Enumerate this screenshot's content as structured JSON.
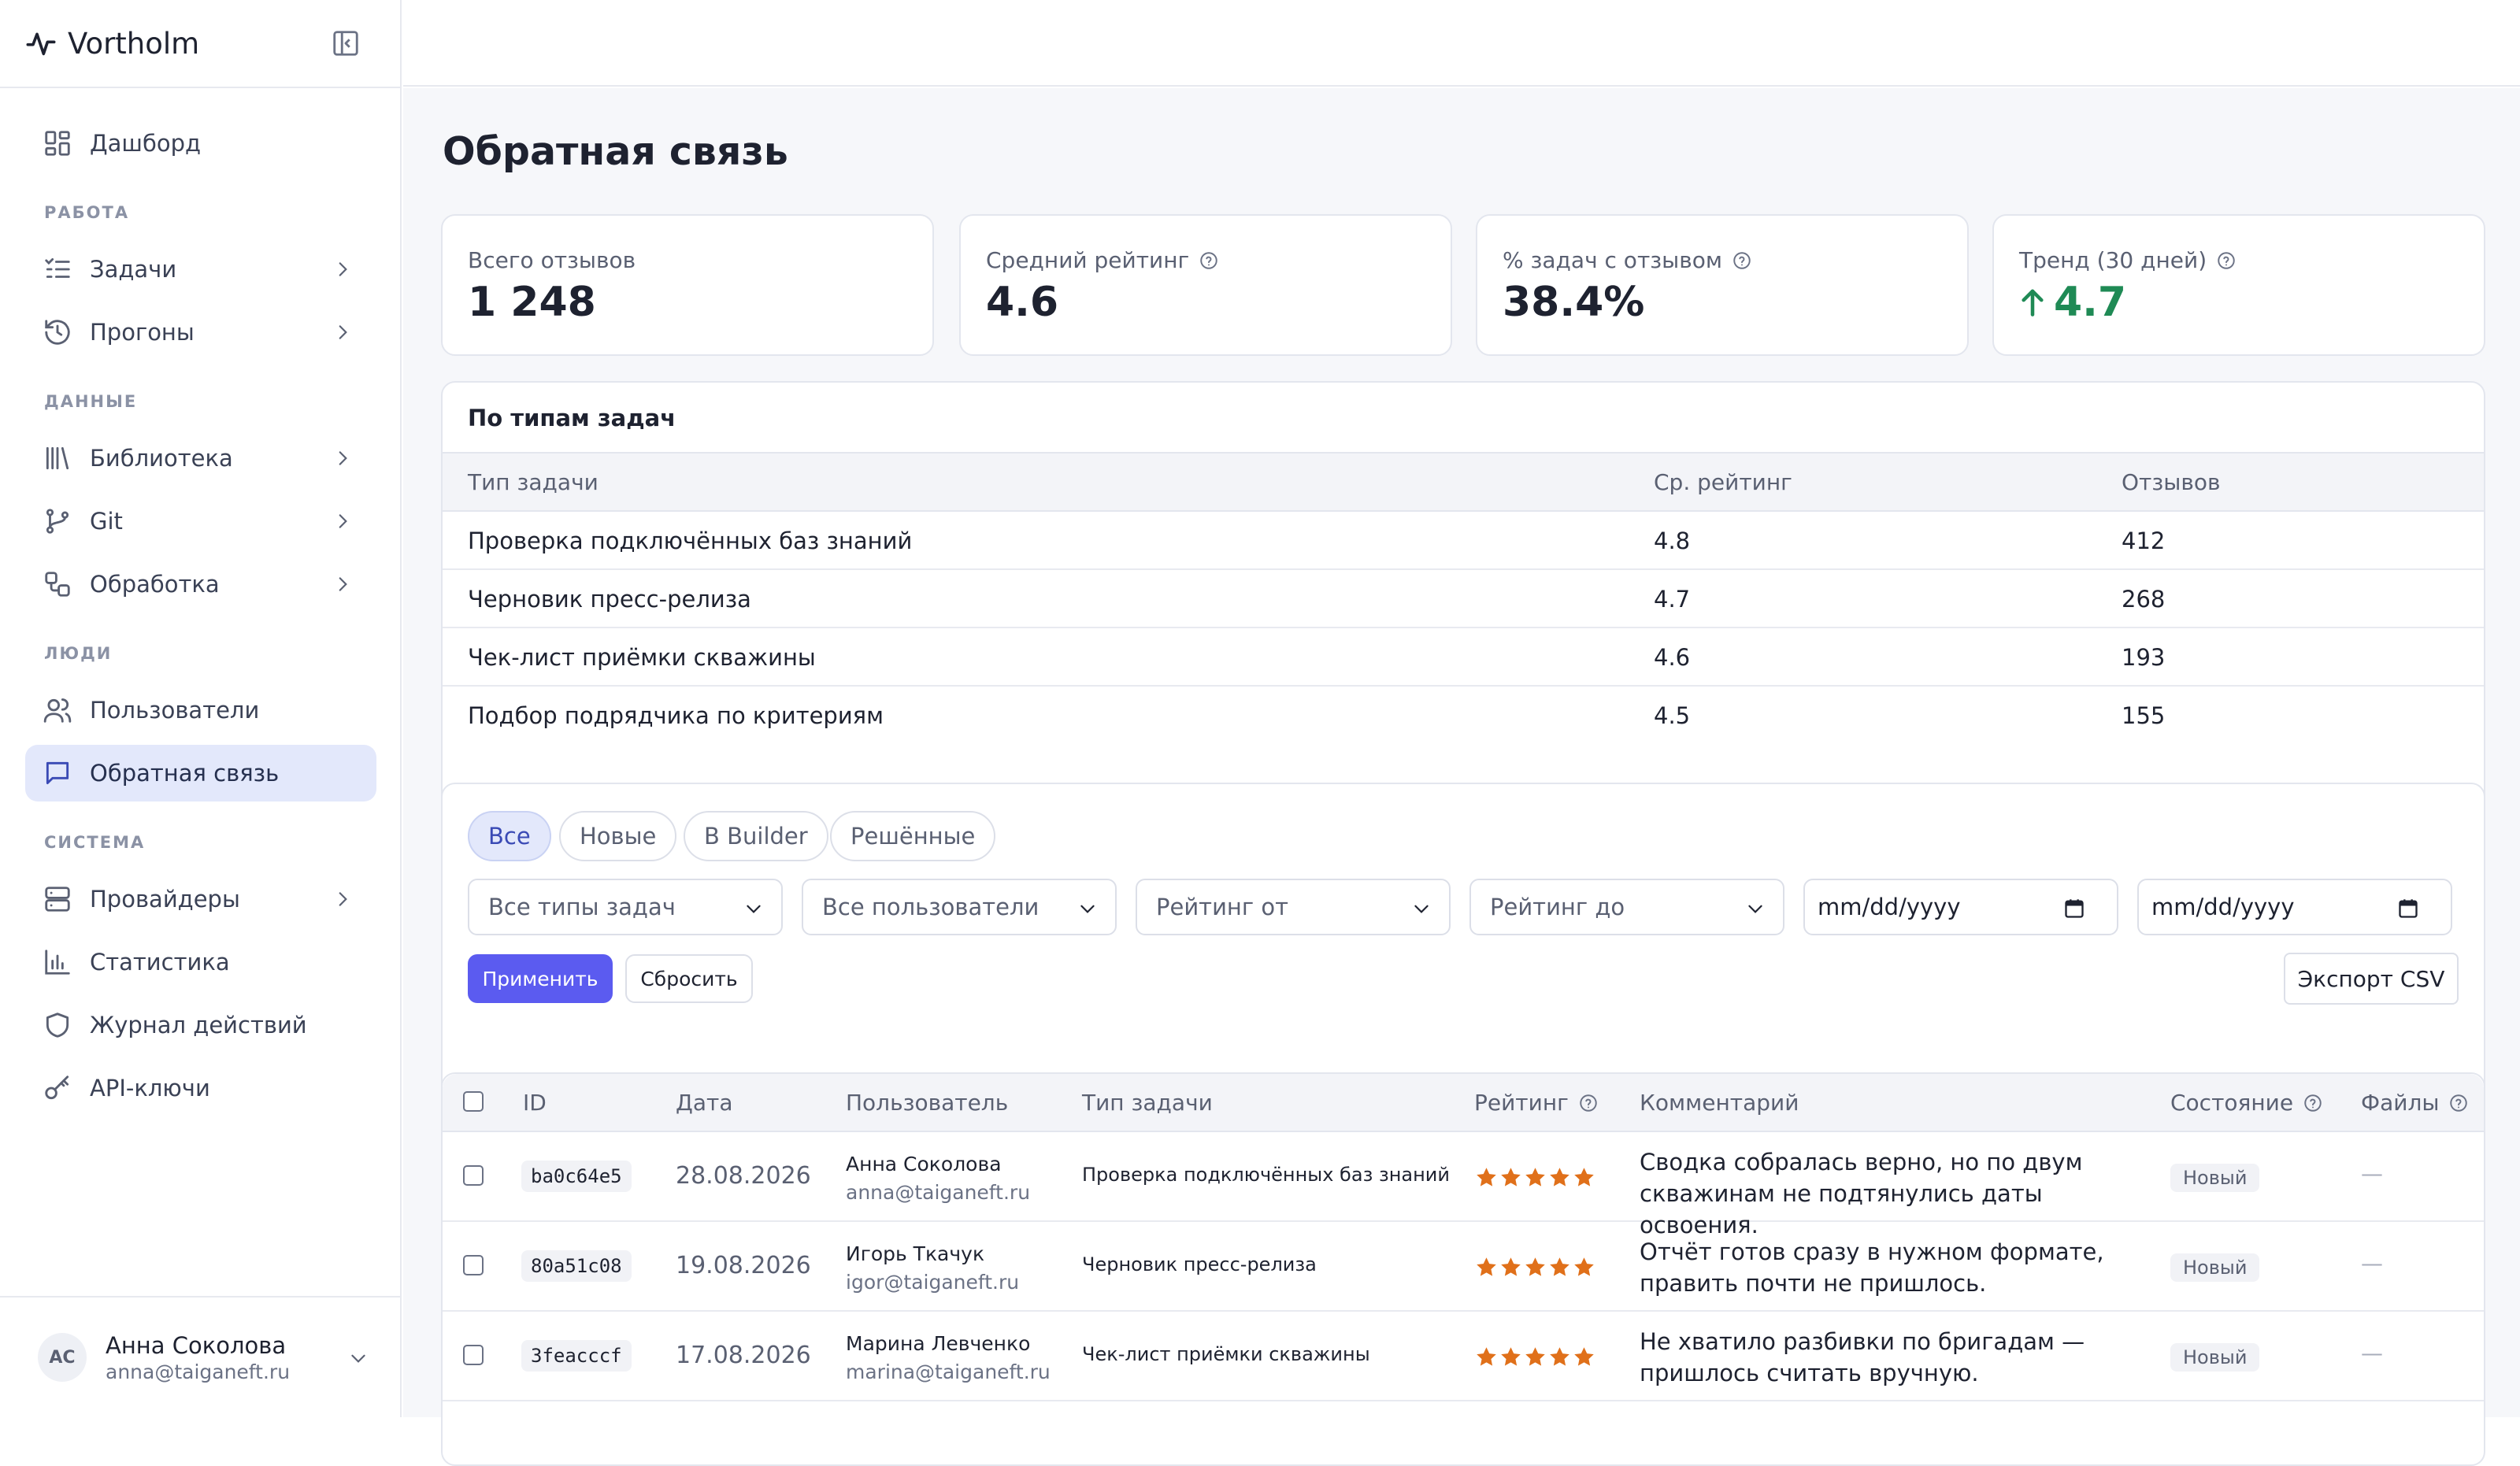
{
  "app": {
    "name": "Vortholm"
  },
  "sidebar": {
    "dashboard": "Дашборд",
    "sections": {
      "work": "РАБОТА",
      "data": "ДАННЫЕ",
      "people": "ЛЮДИ",
      "system": "СИСТЕМА"
    },
    "items": {
      "tasks": "Задачи",
      "runs": "Прогоны",
      "library": "Библиотека",
      "git": "Git",
      "processing": "Обработка",
      "users": "Пользователи",
      "feedback": "Обратная связь",
      "providers": "Провайдеры",
      "stats": "Статистика",
      "audit": "Журнал действий",
      "apikeys": "API-ключи"
    },
    "active": "feedback"
  },
  "user": {
    "initials": "AC",
    "name": "Анна Соколова",
    "email": "anna@taiganeft.ru"
  },
  "page": {
    "title": "Обратная связь"
  },
  "kpis": [
    {
      "label": "Всего отзывов",
      "value": "1 248",
      "help": false
    },
    {
      "label": "Средний рейтинг",
      "value": "4.6",
      "help": true
    },
    {
      "label": "% задач с отзывом",
      "value": "38.4%",
      "help": true
    },
    {
      "label": "Тренд (30 дней)",
      "value": "4.7",
      "help": true,
      "trend": "up",
      "color": "#1f8a55"
    }
  ],
  "by_type": {
    "title": "По типам задач",
    "headers": [
      "Тип задачи",
      "Ср. рейтинг",
      "Отзывов"
    ],
    "rows": [
      [
        "Проверка подключённых баз знаний",
        "4.8",
        "412"
      ],
      [
        "Черновик пресс-релиза",
        "4.7",
        "268"
      ],
      [
        "Чек-лист приёмки скважины",
        "4.6",
        "193"
      ],
      [
        "Подбор подрядчика по критериям",
        "4.5",
        "155"
      ]
    ]
  },
  "filters": {
    "tabs": [
      "Все",
      "Новые",
      "В Builder",
      "Решённые"
    ],
    "active_tab": "Все",
    "selects": [
      "Все типы задач",
      "Все пользователи",
      "Рейтинг от",
      "Рейтинг до"
    ],
    "date_placeholder": "mm/dd/yyyy",
    "apply": "Применить",
    "reset": "Сбросить",
    "export": "Экспорт CSV"
  },
  "table": {
    "headers": {
      "id": "ID",
      "date": "Дата",
      "user": "Пользователь",
      "type": "Тип задачи",
      "rating": "Рейтинг",
      "comment": "Комментарий",
      "state": "Состояние",
      "files": "Файлы"
    },
    "rows": [
      {
        "id": "ba0c64e5",
        "date": "28.08.2026",
        "user": "Анна Соколова",
        "email": "anna@taiganeft.ru",
        "type": "Проверка подключённых баз знаний",
        "rating": 5,
        "comment": "Сводка собралась верно, но по двум скважинам не подтянулись даты освоения.",
        "state": "Новый",
        "files": "—"
      },
      {
        "id": "80a51c08",
        "date": "19.08.2026",
        "user": "Игорь Ткачук",
        "email": "igor@taiganeft.ru",
        "type": "Черновик пресс-релиза",
        "rating": 5,
        "comment": "Отчёт готов сразу в нужном формате, править почти не пришлось.",
        "state": "Новый",
        "files": "—"
      },
      {
        "id": "3feacccf",
        "date": "17.08.2026",
        "user": "Марина Левченко",
        "email": "marina@taiganeft.ru",
        "type": "Чек-лист приёмки скважины",
        "rating": 5,
        "comment": "Не хватило разбивки по бригадам — пришлось считать вручную.",
        "state": "Новый",
        "files": "—"
      }
    ]
  },
  "colors": {
    "accent": "#5b5bf0",
    "star": "#e0701a",
    "trend": "#1f8a55",
    "active_nav": "#e3e8fb"
  }
}
